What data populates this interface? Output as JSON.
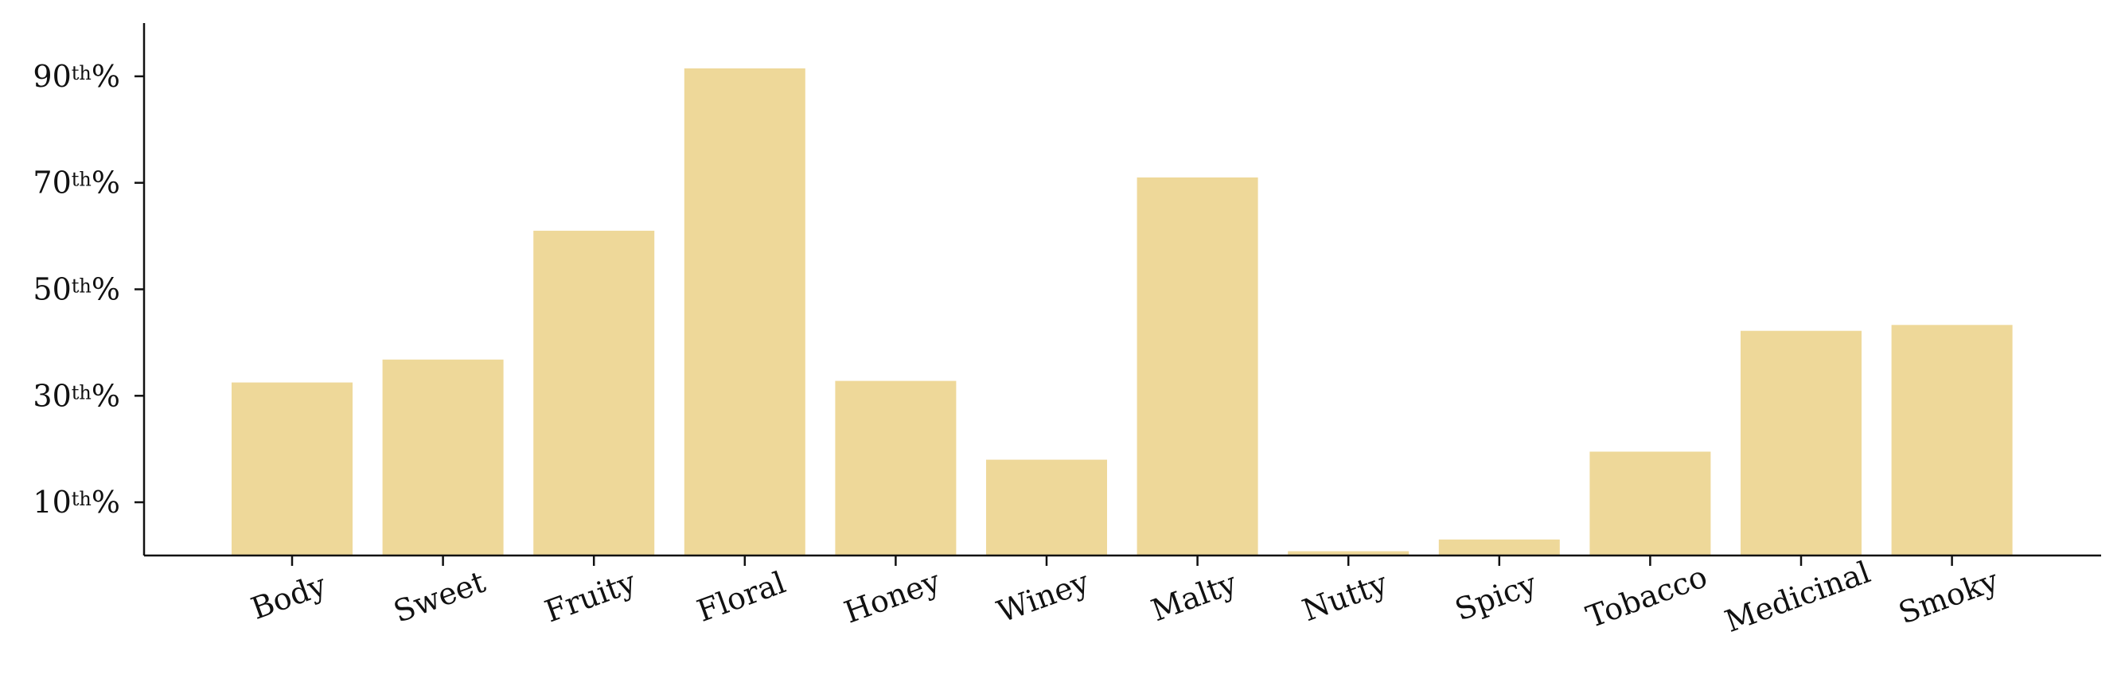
{
  "chart_data": {
    "type": "bar",
    "title": "",
    "xlabel": "",
    "ylabel": "",
    "categories": [
      "Body",
      "Sweet",
      "Fruity",
      "Floral",
      "Honey",
      "Winey",
      "Malty",
      "Nutty",
      "Spicy",
      "Tobacco",
      "Medicinal",
      "Smoky"
    ],
    "values": [
      32.5,
      36.8,
      61.0,
      91.5,
      32.8,
      18.0,
      71.0,
      0.8,
      3.0,
      19.5,
      42.2,
      43.3
    ],
    "ylim": [
      0,
      100
    ],
    "y_ticks": [
      {
        "value": 10,
        "num": "10",
        "sup": "th",
        "pct": "%"
      },
      {
        "value": 30,
        "num": "30",
        "sup": "th",
        "pct": "%"
      },
      {
        "value": 50,
        "num": "50",
        "sup": "th",
        "pct": "%"
      },
      {
        "value": 70,
        "num": "70",
        "sup": "th",
        "pct": "%"
      },
      {
        "value": 90,
        "num": "90",
        "sup": "th",
        "pct": "%"
      }
    ],
    "x_tick_rotation_deg": -20,
    "bar_color": "#EED899",
    "axis_color": "#111111",
    "grid": false,
    "legend": "none"
  }
}
